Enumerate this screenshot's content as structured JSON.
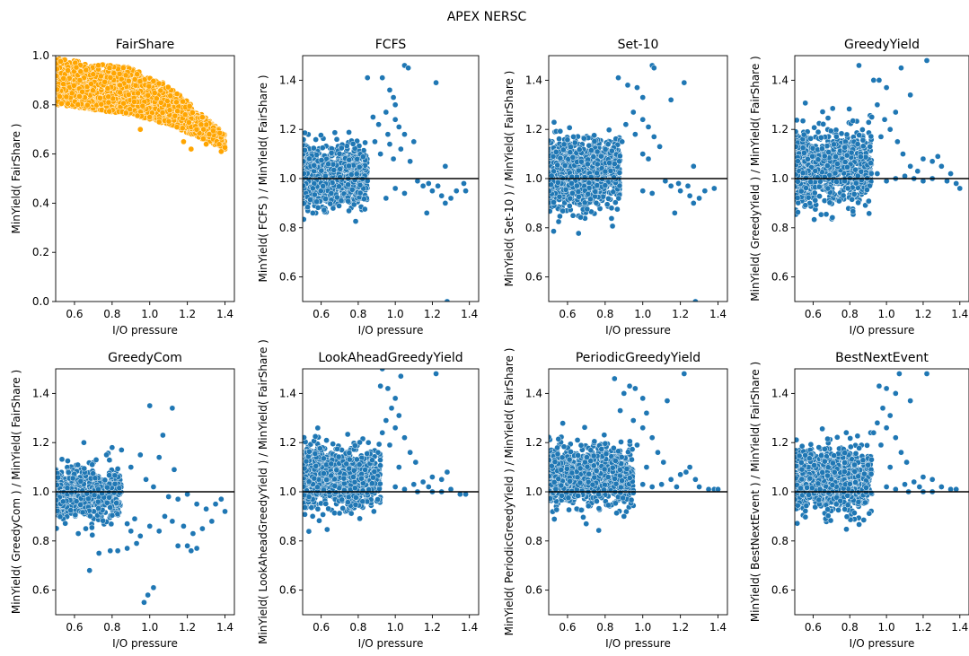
{
  "figure": {
    "suptitle": "APEX NERSC"
  },
  "colors": {
    "orange": "#ffa500",
    "blue": "#1f77b4",
    "edge": "#ffffff",
    "refline": "#000000"
  },
  "chart_data": [
    {
      "id": "fairshare",
      "type": "scatter",
      "title": "FairShare",
      "xlabel": "I/O pressure",
      "ylabel": "MinYield( FairShare )",
      "xlim": [
        0.5,
        1.45
      ],
      "ylim": [
        0.0,
        1.0
      ],
      "xticks": [
        0.6,
        0.8,
        1.0,
        1.2,
        1.4
      ],
      "yticks": [
        0.0,
        0.2,
        0.4,
        0.6,
        0.8,
        1.0
      ],
      "color": "orange",
      "refline": null,
      "band": {
        "x0": 0.5,
        "x1": 1.4,
        "top": [
          [
            0.5,
            0.99
          ],
          [
            0.9,
            0.95
          ],
          [
            1.1,
            0.88
          ],
          [
            1.4,
            0.68
          ]
        ],
        "bottom": [
          [
            0.5,
            0.8
          ],
          [
            0.9,
            0.76
          ],
          [
            1.1,
            0.72
          ],
          [
            1.4,
            0.62
          ]
        ],
        "count": 2200
      },
      "points": [
        [
          0.95,
          0.7
        ],
        [
          1.05,
          0.73
        ],
        [
          1.0,
          0.75
        ],
        [
          1.22,
          0.62
        ],
        [
          1.38,
          0.61
        ],
        [
          1.18,
          0.65
        ],
        [
          1.3,
          0.64
        ]
      ]
    },
    {
      "id": "fcfs",
      "type": "scatter",
      "title": "FCFS",
      "xlabel": "I/O pressure",
      "ylabel": "MinYield( FCFS ) / MinYield( FairShare )",
      "xlim": [
        0.5,
        1.45
      ],
      "ylim": [
        0.5,
        1.5
      ],
      "xticks": [
        0.6,
        0.8,
        1.0,
        1.2,
        1.4
      ],
      "yticks": [
        0.6,
        0.8,
        1.0,
        1.2,
        1.4
      ],
      "color": "blue",
      "refline": 1.0,
      "band": {
        "x0": 0.5,
        "x1": 0.85,
        "center": 1.01,
        "spread": 0.06,
        "count": 1000
      },
      "points": [
        [
          0.85,
          1.41
        ],
        [
          1.05,
          1.46
        ],
        [
          1.07,
          1.45
        ],
        [
          0.97,
          1.36
        ],
        [
          0.99,
          1.33
        ],
        [
          0.93,
          1.41
        ],
        [
          1.0,
          1.3
        ],
        [
          0.95,
          1.27
        ],
        [
          1.22,
          1.39
        ],
        [
          0.88,
          1.25
        ],
        [
          1.0,
          1.24
        ],
        [
          1.02,
          1.21
        ],
        [
          0.91,
          1.22
        ],
        [
          0.96,
          1.18
        ],
        [
          1.05,
          1.18
        ],
        [
          1.1,
          1.15
        ],
        [
          0.89,
          1.15
        ],
        [
          0.97,
          1.14
        ],
        [
          1.03,
          1.12
        ],
        [
          0.92,
          1.1
        ],
        [
          0.99,
          1.08
        ],
        [
          1.08,
          1.07
        ],
        [
          1.27,
          1.05
        ],
        [
          1.12,
          0.99
        ],
        [
          1.15,
          0.97
        ],
        [
          1.18,
          0.98
        ],
        [
          1.2,
          0.95
        ],
        [
          1.23,
          0.97
        ],
        [
          1.25,
          0.93
        ],
        [
          1.3,
          0.92
        ],
        [
          1.33,
          0.95
        ],
        [
          1.37,
          0.98
        ],
        [
          1.38,
          0.95
        ],
        [
          1.17,
          0.86
        ],
        [
          1.27,
          0.9
        ],
        [
          1.0,
          0.96
        ],
        [
          1.05,
          0.94
        ],
        [
          0.95,
          0.92
        ],
        [
          1.28,
          0.5
        ]
      ]
    },
    {
      "id": "set10",
      "type": "scatter",
      "title": "Set-10",
      "xlabel": "I/O pressure",
      "ylabel": "MinYield( Set-10 ) / MinYield( FairShare )",
      "xlim": [
        0.5,
        1.45
      ],
      "ylim": [
        0.5,
        1.5
      ],
      "xticks": [
        0.6,
        0.8,
        1.0,
        1.2,
        1.4
      ],
      "yticks": [
        0.6,
        0.8,
        1.0,
        1.2,
        1.4
      ],
      "color": "blue",
      "refline": 1.0,
      "band": {
        "x0": 0.5,
        "x1": 0.88,
        "center": 1.02,
        "spread": 0.07,
        "count": 1000
      },
      "points": [
        [
          0.87,
          1.41
        ],
        [
          1.05,
          1.46
        ],
        [
          1.06,
          1.45
        ],
        [
          0.97,
          1.37
        ],
        [
          1.0,
          1.33
        ],
        [
          0.92,
          1.38
        ],
        [
          1.22,
          1.39
        ],
        [
          1.15,
          1.32
        ],
        [
          0.95,
          1.27
        ],
        [
          1.0,
          1.24
        ],
        [
          1.03,
          1.21
        ],
        [
          0.91,
          1.22
        ],
        [
          0.96,
          1.18
        ],
        [
          1.06,
          1.17
        ],
        [
          0.89,
          1.15
        ],
        [
          1.09,
          1.13
        ],
        [
          1.0,
          1.1
        ],
        [
          1.03,
          1.08
        ],
        [
          1.27,
          1.05
        ],
        [
          1.12,
          0.99
        ],
        [
          1.15,
          0.97
        ],
        [
          1.19,
          0.98
        ],
        [
          1.2,
          0.95
        ],
        [
          1.24,
          0.97
        ],
        [
          1.25,
          0.93
        ],
        [
          1.3,
          0.92
        ],
        [
          1.33,
          0.95
        ],
        [
          1.38,
          0.96
        ],
        [
          1.17,
          0.86
        ],
        [
          1.27,
          0.9
        ],
        [
          1.0,
          0.95
        ],
        [
          1.05,
          0.94
        ],
        [
          1.28,
          0.5
        ]
      ]
    },
    {
      "id": "greedyyield",
      "type": "scatter",
      "title": "GreedyYield",
      "xlabel": "I/O pressure",
      "ylabel": "MinYield( GreedyYield ) / MinYield( FairShare )",
      "xlim": [
        0.5,
        1.45
      ],
      "ylim": [
        0.5,
        1.5
      ],
      "xticks": [
        0.6,
        0.8,
        1.0,
        1.2,
        1.4
      ],
      "yticks": [
        0.6,
        0.8,
        1.0,
        1.2,
        1.4
      ],
      "color": "blue",
      "refline": 1.0,
      "band": {
        "x0": 0.5,
        "x1": 0.92,
        "center": 1.04,
        "spread": 0.07,
        "count": 1000
      },
      "points": [
        [
          0.85,
          1.46
        ],
        [
          1.22,
          1.48
        ],
        [
          1.08,
          1.45
        ],
        [
          0.93,
          1.4
        ],
        [
          0.96,
          1.4
        ],
        [
          1.0,
          1.37
        ],
        [
          1.13,
          1.34
        ],
        [
          0.95,
          1.3
        ],
        [
          1.05,
          1.27
        ],
        [
          0.92,
          1.25
        ],
        [
          0.99,
          1.24
        ],
        [
          1.02,
          1.2
        ],
        [
          0.97,
          1.17
        ],
        [
          1.06,
          1.15
        ],
        [
          0.91,
          1.13
        ],
        [
          1.09,
          1.1
        ],
        [
          1.28,
          1.09
        ],
        [
          1.2,
          1.08
        ],
        [
          1.25,
          1.07
        ],
        [
          1.3,
          1.05
        ],
        [
          1.13,
          1.05
        ],
        [
          1.17,
          1.03
        ],
        [
          1.35,
          1.02
        ],
        [
          1.1,
          1.01
        ],
        [
          1.15,
          1.0
        ],
        [
          1.2,
          0.99
        ],
        [
          1.25,
          1.0
        ],
        [
          1.33,
          0.99
        ],
        [
          1.38,
          0.98
        ],
        [
          1.4,
          0.96
        ],
        [
          1.0,
          0.99
        ],
        [
          1.05,
          1.0
        ],
        [
          0.95,
          1.02
        ]
      ]
    },
    {
      "id": "greedycom",
      "type": "scatter",
      "title": "GreedyCom",
      "xlabel": "I/O pressure",
      "ylabel": "MinYield( GreedyCom ) / MinYield( FairShare )",
      "xlim": [
        0.5,
        1.45
      ],
      "ylim": [
        0.5,
        1.5
      ],
      "xticks": [
        0.6,
        0.8,
        1.0,
        1.2,
        1.4
      ],
      "yticks": [
        0.6,
        0.8,
        1.0,
        1.2,
        1.4
      ],
      "color": "blue",
      "refline": 1.0,
      "band": {
        "x0": 0.5,
        "x1": 0.85,
        "center": 0.99,
        "spread": 0.05,
        "count": 700
      },
      "points": [
        [
          0.97,
          0.55
        ],
        [
          0.99,
          0.58
        ],
        [
          1.02,
          0.61
        ],
        [
          0.68,
          0.68
        ],
        [
          0.73,
          0.75
        ],
        [
          0.79,
          0.76
        ],
        [
          0.83,
          0.76
        ],
        [
          0.88,
          0.77
        ],
        [
          1.12,
          1.34
        ],
        [
          1.0,
          1.35
        ],
        [
          1.07,
          1.23
        ],
        [
          0.95,
          1.15
        ],
        [
          1.05,
          1.14
        ],
        [
          0.65,
          1.2
        ],
        [
          0.8,
          1.18
        ],
        [
          0.85,
          1.17
        ],
        [
          0.77,
          1.15
        ],
        [
          0.9,
          1.1
        ],
        [
          1.13,
          1.09
        ],
        [
          0.98,
          1.05
        ],
        [
          1.02,
          1.02
        ],
        [
          1.1,
          0.98
        ],
        [
          1.15,
          0.97
        ],
        [
          1.2,
          0.99
        ],
        [
          1.25,
          0.95
        ],
        [
          1.3,
          0.93
        ],
        [
          1.35,
          0.95
        ],
        [
          1.38,
          0.97
        ],
        [
          1.4,
          0.92
        ],
        [
          1.08,
          0.9
        ],
        [
          1.12,
          0.88
        ],
        [
          1.18,
          0.86
        ],
        [
          1.23,
          0.83
        ],
        [
          1.28,
          0.85
        ],
        [
          1.33,
          0.88
        ],
        [
          1.0,
          0.86
        ],
        [
          1.05,
          0.84
        ],
        [
          0.95,
          0.82
        ],
        [
          0.9,
          0.84
        ],
        [
          0.93,
          0.79
        ],
        [
          1.15,
          0.78
        ],
        [
          1.2,
          0.78
        ],
        [
          1.22,
          0.76
        ],
        [
          1.25,
          0.77
        ],
        [
          0.62,
          0.83
        ],
        [
          0.66,
          0.85
        ],
        [
          0.88,
          0.87
        ],
        [
          0.92,
          0.89
        ]
      ]
    },
    {
      "id": "lookahead",
      "type": "scatter",
      "title": "LookAheadGreedyYield",
      "xlabel": "I/O pressure",
      "ylabel": "MinYield( LookAheadGreedyYield ) / MinYield( FairShare )",
      "xlim": [
        0.5,
        1.45
      ],
      "ylim": [
        0.5,
        1.5
      ],
      "xticks": [
        0.6,
        0.8,
        1.0,
        1.2,
        1.4
      ],
      "yticks": [
        0.6,
        0.8,
        1.0,
        1.2,
        1.4
      ],
      "color": "blue",
      "refline": 1.0,
      "band": {
        "x0": 0.5,
        "x1": 0.92,
        "center": 1.06,
        "spread": 0.06,
        "count": 1000
      },
      "points": [
        [
          0.93,
          1.5
        ],
        [
          1.22,
          1.48
        ],
        [
          1.03,
          1.47
        ],
        [
          0.96,
          1.42
        ],
        [
          1.0,
          1.38
        ],
        [
          0.92,
          1.43
        ],
        [
          0.98,
          1.34
        ],
        [
          1.02,
          1.31
        ],
        [
          0.95,
          1.29
        ],
        [
          1.0,
          1.26
        ],
        [
          0.93,
          1.24
        ],
        [
          1.05,
          1.22
        ],
        [
          0.97,
          1.19
        ],
        [
          1.08,
          1.16
        ],
        [
          1.11,
          1.12
        ],
        [
          1.02,
          1.1
        ],
        [
          1.28,
          1.08
        ],
        [
          1.2,
          1.06
        ],
        [
          1.25,
          1.05
        ],
        [
          1.15,
          1.04
        ],
        [
          1.1,
          1.03
        ],
        [
          1.18,
          1.02
        ],
        [
          1.3,
          1.01
        ],
        [
          1.35,
          0.99
        ],
        [
          1.38,
          0.99
        ],
        [
          1.2,
          1.0
        ],
        [
          1.25,
          1.0
        ],
        [
          1.05,
          1.01
        ],
        [
          1.0,
          1.02
        ],
        [
          1.12,
          1.0
        ]
      ]
    },
    {
      "id": "periodic",
      "type": "scatter",
      "title": "PeriodicGreedyYield",
      "xlabel": "I/O pressure",
      "ylabel": "MinYield( PeriodicGreedyYield ) / MinYield( FairShare )",
      "xlim": [
        0.5,
        1.45
      ],
      "ylim": [
        0.5,
        1.5
      ],
      "xticks": [
        0.6,
        0.8,
        1.0,
        1.2,
        1.4
      ],
      "yticks": [
        0.6,
        0.8,
        1.0,
        1.2,
        1.4
      ],
      "color": "blue",
      "refline": 1.0,
      "band": {
        "x0": 0.5,
        "x1": 0.95,
        "center": 1.06,
        "spread": 0.06,
        "count": 1000
      },
      "points": [
        [
          1.22,
          1.48
        ],
        [
          0.85,
          1.46
        ],
        [
          0.93,
          1.43
        ],
        [
          0.96,
          1.42
        ],
        [
          0.9,
          1.4
        ],
        [
          1.0,
          1.38
        ],
        [
          1.13,
          1.37
        ],
        [
          0.88,
          1.33
        ],
        [
          1.02,
          1.32
        ],
        [
          0.95,
          1.29
        ],
        [
          1.0,
          1.26
        ],
        [
          1.05,
          1.22
        ],
        [
          0.97,
          1.19
        ],
        [
          1.08,
          1.16
        ],
        [
          1.11,
          1.12
        ],
        [
          1.02,
          1.1
        ],
        [
          1.25,
          1.1
        ],
        [
          1.2,
          1.07
        ],
        [
          1.23,
          1.08
        ],
        [
          1.15,
          1.05
        ],
        [
          1.28,
          1.05
        ],
        [
          1.1,
          1.03
        ],
        [
          1.18,
          1.02
        ],
        [
          1.3,
          1.02
        ],
        [
          1.35,
          1.01
        ],
        [
          1.38,
          1.01
        ],
        [
          1.4,
          1.01
        ],
        [
          1.05,
          1.02
        ],
        [
          1.0,
          1.03
        ]
      ]
    },
    {
      "id": "bestnext",
      "type": "scatter",
      "title": "BestNextEvent",
      "xlabel": "I/O pressure",
      "ylabel": "MinYield( BestNextEvent ) / MinYield( FairShare )",
      "xlim": [
        0.5,
        1.45
      ],
      "ylim": [
        0.5,
        1.5
      ],
      "xticks": [
        0.6,
        0.8,
        1.0,
        1.2,
        1.4
      ],
      "yticks": [
        0.6,
        0.8,
        1.0,
        1.2,
        1.4
      ],
      "color": "blue",
      "refline": 1.0,
      "band": {
        "x0": 0.5,
        "x1": 0.92,
        "center": 1.05,
        "spread": 0.06,
        "count": 1000
      },
      "points": [
        [
          1.22,
          1.48
        ],
        [
          1.07,
          1.48
        ],
        [
          0.96,
          1.43
        ],
        [
          1.0,
          1.42
        ],
        [
          1.05,
          1.4
        ],
        [
          1.13,
          1.37
        ],
        [
          0.98,
          1.34
        ],
        [
          1.02,
          1.31
        ],
        [
          0.95,
          1.28
        ],
        [
          1.0,
          1.26
        ],
        [
          0.93,
          1.24
        ],
        [
          1.05,
          1.22
        ],
        [
          0.97,
          1.19
        ],
        [
          1.08,
          1.16
        ],
        [
          1.11,
          1.12
        ],
        [
          1.02,
          1.1
        ],
        [
          1.2,
          1.06
        ],
        [
          1.25,
          1.05
        ],
        [
          1.15,
          1.04
        ],
        [
          1.1,
          1.03
        ],
        [
          1.18,
          1.02
        ],
        [
          1.3,
          1.02
        ],
        [
          1.35,
          1.01
        ],
        [
          1.38,
          1.01
        ],
        [
          1.2,
          1.0
        ],
        [
          1.25,
          1.0
        ],
        [
          1.05,
          1.01
        ],
        [
          1.0,
          1.02
        ],
        [
          1.12,
          1.0
        ]
      ]
    }
  ]
}
